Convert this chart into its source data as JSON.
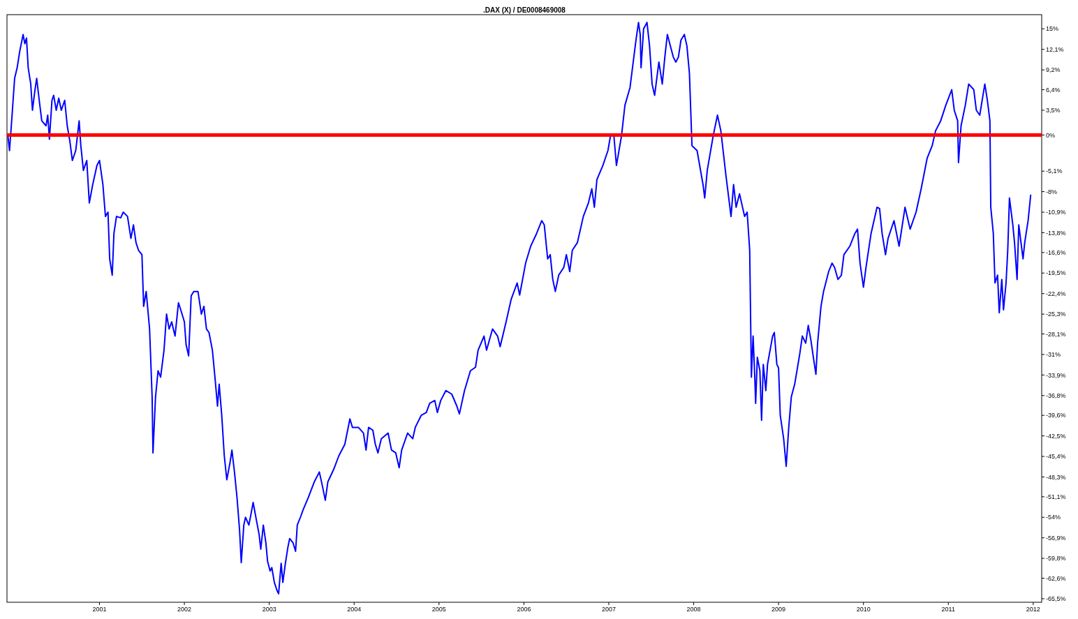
{
  "chart_data": {
    "type": "line",
    "title": ".DAX (X) / DE0008469008",
    "xlim": [
      1999.91,
      2012.1
    ],
    "xticks": [
      2001,
      2002,
      2003,
      2004,
      2005,
      2006,
      2007,
      2008,
      2009,
      2010,
      2011,
      2012
    ],
    "ylim": [
      -66,
      17
    ],
    "yticks": [
      {
        "value": 15,
        "label": "15%"
      },
      {
        "value": 12.1,
        "label": "12,1%"
      },
      {
        "value": 9.2,
        "label": "9,2%"
      },
      {
        "value": 6.4,
        "label": "6,4%"
      },
      {
        "value": 3.5,
        "label": "3,5%"
      },
      {
        "value": 0,
        "label": "0%"
      },
      {
        "value": -5.1,
        "label": "-5,1%"
      },
      {
        "value": -8,
        "label": "-8%"
      },
      {
        "value": -10.9,
        "label": "-10,9%"
      },
      {
        "value": -13.8,
        "label": "-13,8%"
      },
      {
        "value": -16.6,
        "label": "-16,6%"
      },
      {
        "value": -19.5,
        "label": "-19,5%"
      },
      {
        "value": -22.4,
        "label": "-22,4%"
      },
      {
        "value": -25.3,
        "label": "-25,3%"
      },
      {
        "value": -28.1,
        "label": "-28,1%"
      },
      {
        "value": -31,
        "label": "-31%"
      },
      {
        "value": -33.9,
        "label": "-33,9%"
      },
      {
        "value": -36.8,
        "label": "-36,8%"
      },
      {
        "value": -39.6,
        "label": "-39,6%"
      },
      {
        "value": -42.5,
        "label": "-42,5%"
      },
      {
        "value": -45.4,
        "label": "-45,4%"
      },
      {
        "value": -48.3,
        "label": "-48,3%"
      },
      {
        "value": -51.1,
        "label": "-51,1%"
      },
      {
        "value": -54,
        "label": "-54%"
      },
      {
        "value": -56.9,
        "label": "-56,9%"
      },
      {
        "value": -59.8,
        "label": "-59,8%"
      },
      {
        "value": -62.6,
        "label": "-62,6%"
      },
      {
        "value": -65.5,
        "label": "-65,5%"
      }
    ],
    "grid": false,
    "ref_lines": [
      {
        "axis": "y",
        "value": 0,
        "color": "#ff0000"
      }
    ],
    "series": [
      {
        "color": "#0000ff",
        "x": [
          1999.92,
          1999.94,
          1999.97,
          2000.0,
          2000.03,
          2000.06,
          2000.1,
          2000.12,
          2000.14,
          2000.16,
          2000.19,
          2000.21,
          2000.24,
          2000.26,
          2000.29,
          2000.32,
          2000.37,
          2000.39,
          2000.41,
          2000.44,
          2000.46,
          2000.49,
          2000.52,
          2000.55,
          2000.59,
          2000.62,
          2000.65,
          2000.68,
          2000.72,
          2000.76,
          2000.78,
          2000.81,
          2000.85,
          2000.88,
          2000.92,
          2000.97,
          2001.0,
          2001.04,
          2001.07,
          2001.1,
          2001.12,
          2001.15,
          2001.17,
          2001.2,
          2001.25,
          2001.28,
          2001.33,
          2001.37,
          2001.4,
          2001.43,
          2001.46,
          2001.5,
          2001.52,
          2001.55,
          2001.59,
          2001.62,
          2001.63,
          2001.66,
          2001.69,
          2001.72,
          2001.76,
          2001.79,
          2001.82,
          2001.85,
          2001.89,
          2001.93,
          2001.96,
          2002.0,
          2002.02,
          2002.05,
          2002.08,
          2002.11,
          2002.16,
          2002.2,
          2002.23,
          2002.26,
          2002.29,
          2002.33,
          2002.36,
          2002.39,
          2002.41,
          2002.44,
          2002.47,
          2002.5,
          2002.54,
          2002.56,
          2002.59,
          2002.62,
          2002.65,
          2002.67,
          2002.7,
          2002.72,
          2002.76,
          2002.79,
          2002.81,
          2002.85,
          2002.88,
          2002.9,
          2002.93,
          2002.96,
          2002.98,
          2003.01,
          2003.03,
          2003.06,
          2003.09,
          2003.11,
          2003.14,
          2003.16,
          2003.19,
          2003.22,
          2003.24,
          2003.28,
          2003.31,
          2003.33,
          2003.37,
          2003.4,
          2003.46,
          2003.53,
          2003.59,
          2003.63,
          2003.66,
          2003.69,
          2003.76,
          2003.82,
          2003.89,
          2003.95,
          2003.98,
          2004.05,
          2004.11,
          2004.14,
          2004.17,
          2004.22,
          2004.25,
          2004.28,
          2004.32,
          2004.4,
          2004.44,
          2004.49,
          2004.53,
          2004.56,
          2004.63,
          2004.69,
          2004.72,
          2004.79,
          2004.85,
          2004.89,
          2004.95,
          2004.98,
          2005.02,
          2005.08,
          2005.15,
          2005.21,
          2005.24,
          2005.3,
          2005.37,
          2005.43,
          2005.46,
          2005.53,
          2005.56,
          2005.63,
          2005.69,
          2005.72,
          2005.79,
          2005.85,
          2005.92,
          2005.95,
          2006.02,
          2006.08,
          2006.15,
          2006.21,
          2006.24,
          2006.28,
          2006.31,
          2006.34,
          2006.37,
          2006.41,
          2006.47,
          2006.5,
          2006.54,
          2006.57,
          2006.63,
          2006.7,
          2006.76,
          2006.8,
          2006.83,
          2006.86,
          2006.93,
          2006.99,
          2007.02,
          2007.06,
          2007.09,
          2007.12,
          2007.15,
          2007.19,
          2007.25,
          2007.32,
          2007.35,
          2007.37,
          2007.38,
          2007.41,
          2007.45,
          2007.48,
          2007.51,
          2007.54,
          2007.59,
          2007.63,
          2007.66,
          2007.69,
          2007.76,
          2007.79,
          2007.82,
          2007.85,
          2007.89,
          2007.92,
          2007.95,
          2007.98,
          2008.04,
          2008.11,
          2008.13,
          2008.16,
          2008.23,
          2008.28,
          2008.32,
          2008.38,
          2008.44,
          2008.47,
          2008.5,
          2008.54,
          2008.6,
          2008.63,
          2008.66,
          2008.68,
          2008.7,
          2008.72,
          2008.73,
          2008.75,
          2008.78,
          2008.8,
          2008.82,
          2008.85,
          2008.87,
          2008.93,
          2008.95,
          2008.98,
          2009.0,
          2009.02,
          2009.06,
          2009.09,
          2009.12,
          2009.15,
          2009.19,
          2009.25,
          2009.28,
          2009.32,
          2009.35,
          2009.38,
          2009.41,
          2009.44,
          2009.46,
          2009.5,
          2009.53,
          2009.59,
          2009.63,
          2009.66,
          2009.7,
          2009.74,
          2009.77,
          2009.84,
          2009.9,
          2009.93,
          2009.96,
          2010.0,
          2010.03,
          2010.09,
          2010.16,
          2010.19,
          2010.22,
          2010.26,
          2010.29,
          2010.36,
          2010.42,
          2010.49,
          2010.55,
          2010.62,
          2010.68,
          2010.75,
          2010.81,
          2010.85,
          2010.91,
          2010.97,
          2011.04,
          2011.07,
          2011.11,
          2011.12,
          2011.15,
          2011.2,
          2011.24,
          2011.3,
          2011.33,
          2011.37,
          2011.43,
          2011.46,
          2011.49,
          2011.5,
          2011.53,
          2011.55,
          2011.58,
          2011.6,
          2011.63,
          2011.65,
          2011.68,
          2011.7,
          2011.72,
          2011.76,
          2011.78,
          2011.81,
          2011.83,
          2011.85,
          2011.88,
          2011.9,
          2011.94,
          2011.97
        ],
        "values": [
          0,
          -2.2,
          2.8,
          8.0,
          9.5,
          11.8,
          14.2,
          12.9,
          13.7,
          9.5,
          7.2,
          3.5,
          6.4,
          8.0,
          4.9,
          2.0,
          1.3,
          2.8,
          -0.6,
          4.9,
          5.6,
          3.5,
          5.2,
          3.5,
          4.9,
          1.3,
          -0.8,
          -3.6,
          -2.2,
          2.0,
          -1.5,
          -5.0,
          -3.6,
          -9.6,
          -7.0,
          -4.3,
          -3.6,
          -7.0,
          -11.5,
          -10.9,
          -17.5,
          -19.8,
          -13.9,
          -11.5,
          -11.7,
          -10.9,
          -11.5,
          -14.6,
          -12.7,
          -15.2,
          -16.3,
          -16.9,
          -24.2,
          -22.1,
          -27.4,
          -37.0,
          -44.9,
          -37.0,
          -33.3,
          -34.2,
          -30.4,
          -25.3,
          -27.4,
          -26.4,
          -28.4,
          -23.7,
          -24.8,
          -26.4,
          -29.6,
          -31.2,
          -22.7,
          -22.1,
          -22.1,
          -25.3,
          -24.2,
          -27.4,
          -27.9,
          -30.4,
          -34.2,
          -38.3,
          -35.2,
          -39.6,
          -45.3,
          -48.7,
          -46.1,
          -44.5,
          -47.6,
          -51.2,
          -55.8,
          -60.4,
          -55.1,
          -54.0,
          -55.1,
          -53.2,
          -51.9,
          -54.5,
          -56.4,
          -58.5,
          -55.1,
          -57.6,
          -60.2,
          -61.6,
          -61.1,
          -63.2,
          -64.3,
          -64.8,
          -60.5,
          -63.2,
          -60.5,
          -58.2,
          -57.0,
          -57.6,
          -58.8,
          -55.1,
          -53.9,
          -52.9,
          -51.2,
          -49.0,
          -47.6,
          -49.8,
          -51.6,
          -49.0,
          -47.2,
          -45.3,
          -43.7,
          -40.1,
          -41.3,
          -41.3,
          -42.1,
          -44.5,
          -41.3,
          -41.7,
          -43.7,
          -44.9,
          -42.9,
          -42.1,
          -44.5,
          -44.9,
          -47.0,
          -44.5,
          -42.1,
          -42.9,
          -41.3,
          -39.6,
          -39.2,
          -37.9,
          -37.5,
          -39.2,
          -37.5,
          -36.1,
          -36.6,
          -38.3,
          -39.4,
          -36.1,
          -33.3,
          -32.8,
          -30.4,
          -28.4,
          -30.4,
          -27.4,
          -28.4,
          -29.9,
          -26.4,
          -23.2,
          -20.9,
          -22.6,
          -18.1,
          -15.7,
          -13.9,
          -12.1,
          -12.7,
          -17.5,
          -16.9,
          -20.4,
          -22.1,
          -19.8,
          -18.7,
          -16.9,
          -19.3,
          -16.3,
          -15.2,
          -11.5,
          -9.6,
          -7.6,
          -10.2,
          -6.3,
          -4.3,
          -2.2,
          -0.1,
          -0.1,
          -4.3,
          -2.2,
          -0.1,
          4.2,
          6.7,
          13.4,
          15.9,
          14.2,
          9.5,
          15.0,
          15.9,
          12.6,
          7.2,
          5.6,
          10.3,
          7.2,
          11.0,
          14.2,
          11.0,
          10.3,
          11.0,
          13.4,
          14.2,
          12.6,
          8.7,
          -1.5,
          -2.2,
          -7.0,
          -8.9,
          -5.0,
          -0.1,
          2.8,
          0.6,
          -5.7,
          -11.5,
          -7.0,
          -10.2,
          -8.3,
          -11.5,
          -10.9,
          -16.3,
          -34.2,
          -28.4,
          -34.2,
          -37.9,
          -31.4,
          -33.3,
          -40.3,
          -32.4,
          -36.1,
          -32.4,
          -28.4,
          -27.9,
          -32.4,
          -32.9,
          -39.6,
          -42.9,
          -46.8,
          -41.3,
          -37.0,
          -35.2,
          -30.9,
          -28.4,
          -29.4,
          -26.9,
          -28.9,
          -31.4,
          -33.8,
          -29.4,
          -24.2,
          -22.1,
          -19.3,
          -18.1,
          -18.7,
          -20.4,
          -19.8,
          -16.9,
          -15.7,
          -13.9,
          -13.3,
          -18.1,
          -21.5,
          -18.7,
          -13.9,
          -10.2,
          -10.4,
          -13.9,
          -16.9,
          -14.6,
          -12.1,
          -15.7,
          -10.2,
          -13.3,
          -10.9,
          -7.6,
          -3.3,
          -1.5,
          0.6,
          2.0,
          4.2,
          6.4,
          3.5,
          2.0,
          -3.9,
          1.3,
          4.2,
          7.2,
          6.4,
          3.5,
          2.8,
          7.2,
          4.9,
          2.0,
          -10.2,
          -13.9,
          -20.9,
          -19.8,
          -25.1,
          -20.4,
          -24.7,
          -20.9,
          -16.3,
          -8.9,
          -12.7,
          -15.2,
          -20.4,
          -12.7,
          -14.6,
          -17.5,
          -15.2,
          -12.1,
          -8.5
        ]
      }
    ]
  }
}
